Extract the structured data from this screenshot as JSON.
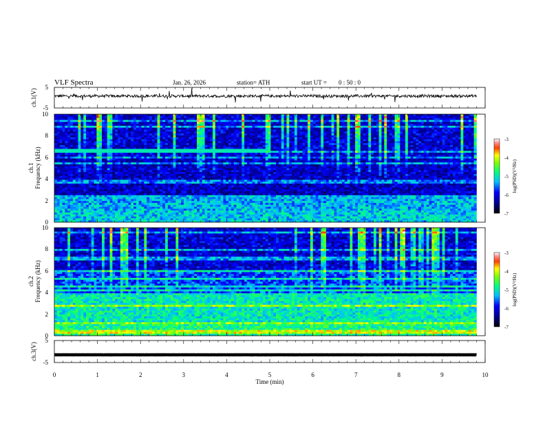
{
  "header": {
    "title": "VLF  Spectra",
    "date": "Jan. 26, 2026",
    "station": "station= ATH",
    "start_label": "start  UT  =",
    "start_time": "0 : 50 : 0"
  },
  "chart_data": [
    {
      "type": "line",
      "name": "ch1-waveform",
      "ylabel": "ch.1(V)",
      "ylim": [
        -5,
        5
      ],
      "yticks": [
        "5",
        "-5"
      ],
      "xlim": [
        0,
        10
      ],
      "x_end": 9.8,
      "baseline": 0.8
    },
    {
      "type": "heatmap",
      "name": "ch1-spectrogram",
      "ylabel": [
        "ch.1",
        "Frequency (kHz)"
      ],
      "ylim": [
        0,
        10
      ],
      "yticks": [
        "0",
        "2",
        "4",
        "6",
        "8",
        "10"
      ],
      "xlim": [
        0,
        10
      ],
      "x_end": 9.8,
      "colorbar": {
        "label": "log(PSD)(V²/Hz)",
        "range": [
          -7,
          -3
        ],
        "ticks": [
          "-3",
          "-4",
          "-5",
          "-6",
          "-7"
        ]
      }
    },
    {
      "type": "heatmap",
      "name": "ch2-spectrogram",
      "ylabel": [
        "ch.2",
        "Frequency (kHz)"
      ],
      "ylim": [
        0,
        10
      ],
      "yticks": [
        "0",
        "2",
        "4",
        "6",
        "8",
        "10"
      ],
      "xlim": [
        0,
        10
      ],
      "x_end": 9.8,
      "colorbar": {
        "label": "log(PSD)(V²/Hz)",
        "range": [
          -7,
          -3
        ],
        "ticks": [
          "-3",
          "-4",
          "-5",
          "-6",
          "-7"
        ]
      }
    },
    {
      "type": "line",
      "name": "ch3-waveform",
      "ylabel": "ch.3(V)",
      "ylim": [
        -5,
        5
      ],
      "yticks": [
        "5",
        "-5"
      ],
      "xlim": [
        0,
        10
      ],
      "x_end": 9.8,
      "baseline": -1.5,
      "xlabel": "Time  (min)",
      "xticks": [
        "0",
        "1",
        "2",
        "3",
        "4",
        "5",
        "6",
        "7",
        "8",
        "9",
        "10"
      ]
    }
  ]
}
